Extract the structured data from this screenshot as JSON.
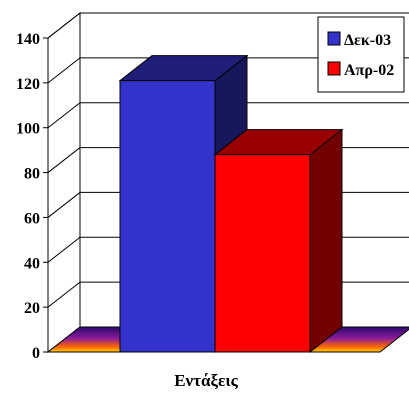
{
  "chart_data": {
    "type": "bar",
    "style": "3d-clustered-column",
    "categories": [
      "Εντάξεις"
    ],
    "series": [
      {
        "name": "Δεκ-03",
        "values": [
          121
        ],
        "color": "#3333cc"
      },
      {
        "name": "Απρ-02",
        "values": [
          88
        ],
        "color": "#ff0000"
      }
    ],
    "xlabel": "Εντάξεις",
    "ylabel": "",
    "title": "",
    "ylim": [
      0,
      140
    ],
    "yticks": [
      0,
      20,
      40,
      60,
      80,
      100,
      120,
      140
    ],
    "grid": true,
    "legend": "top-right",
    "floor_color": "#800080"
  }
}
